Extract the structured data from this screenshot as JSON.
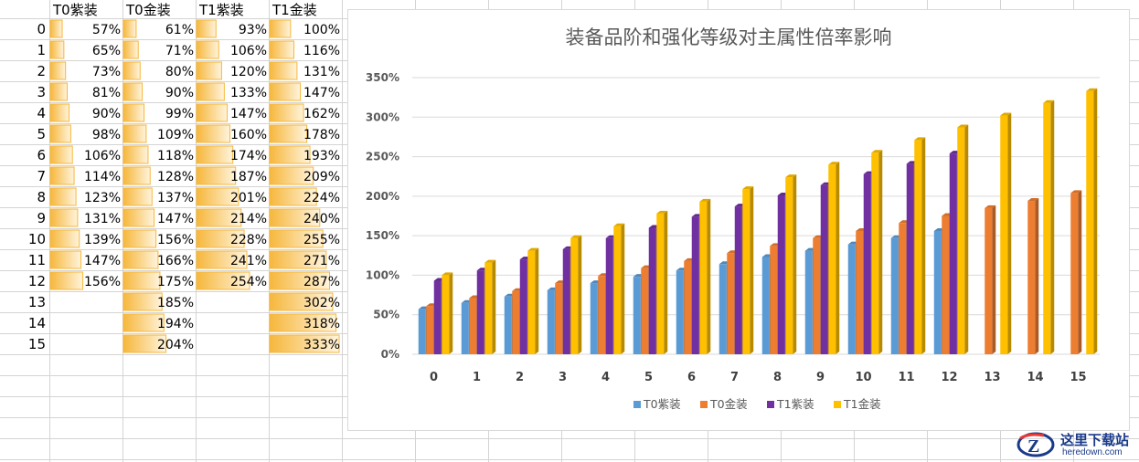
{
  "table": {
    "headers": [
      "T0紫装",
      "T0金装",
      "T1紫装",
      "T1金装"
    ],
    "row_labels": [
      "0",
      "1",
      "2",
      "3",
      "4",
      "5",
      "6",
      "7",
      "8",
      "9",
      "10",
      "11",
      "12",
      "13",
      "14",
      "15"
    ],
    "columns": [
      [
        "57%",
        "65%",
        "73%",
        "81%",
        "90%",
        "98%",
        "106%",
        "114%",
        "123%",
        "131%",
        "139%",
        "147%",
        "156%",
        "",
        "",
        ""
      ],
      [
        "61%",
        "71%",
        "80%",
        "90%",
        "99%",
        "109%",
        "118%",
        "128%",
        "137%",
        "147%",
        "156%",
        "166%",
        "175%",
        "185%",
        "194%",
        "204%"
      ],
      [
        "93%",
        "106%",
        "120%",
        "133%",
        "147%",
        "160%",
        "174%",
        "187%",
        "201%",
        "214%",
        "228%",
        "241%",
        "254%",
        "",
        "",
        ""
      ],
      [
        "100%",
        "116%",
        "131%",
        "147%",
        "162%",
        "178%",
        "193%",
        "209%",
        "224%",
        "240%",
        "255%",
        "271%",
        "287%",
        "302%",
        "318%",
        "333%"
      ]
    ],
    "bar_color": "#f6b73c"
  },
  "chart_data": {
    "type": "bar",
    "title": "装备品阶和强化等级对主属性倍率影响",
    "xlabel": "",
    "ylabel": "",
    "categories": [
      "0",
      "1",
      "2",
      "3",
      "4",
      "5",
      "6",
      "7",
      "8",
      "9",
      "10",
      "11",
      "12",
      "13",
      "14",
      "15"
    ],
    "ylim": [
      0,
      350
    ],
    "yticks": [
      0,
      50,
      100,
      150,
      200,
      250,
      300,
      350
    ],
    "ytick_labels": [
      "0%",
      "50%",
      "100%",
      "150%",
      "200%",
      "250%",
      "300%",
      "350%"
    ],
    "grid": true,
    "legend_position": "bottom",
    "series": [
      {
        "name": "T0紫装",
        "color": "#5b9bd5",
        "values": [
          57,
          65,
          73,
          81,
          90,
          98,
          106,
          114,
          123,
          131,
          139,
          147,
          156,
          null,
          null,
          null
        ]
      },
      {
        "name": "T0金装",
        "color": "#ed7d31",
        "values": [
          61,
          71,
          80,
          90,
          99,
          109,
          118,
          128,
          137,
          147,
          156,
          166,
          175,
          185,
          194,
          204
        ]
      },
      {
        "name": "T1紫装",
        "color": "#7030a0",
        "values": [
          93,
          106,
          120,
          133,
          147,
          160,
          174,
          187,
          201,
          214,
          228,
          241,
          254,
          null,
          null,
          null
        ]
      },
      {
        "name": "T1金装",
        "color": "#ffc000",
        "values": [
          100,
          116,
          131,
          147,
          162,
          178,
          193,
          209,
          224,
          240,
          255,
          271,
          287,
          302,
          318,
          333
        ]
      }
    ]
  },
  "watermark": {
    "title": "这里下载站",
    "url": "heredown.com"
  }
}
